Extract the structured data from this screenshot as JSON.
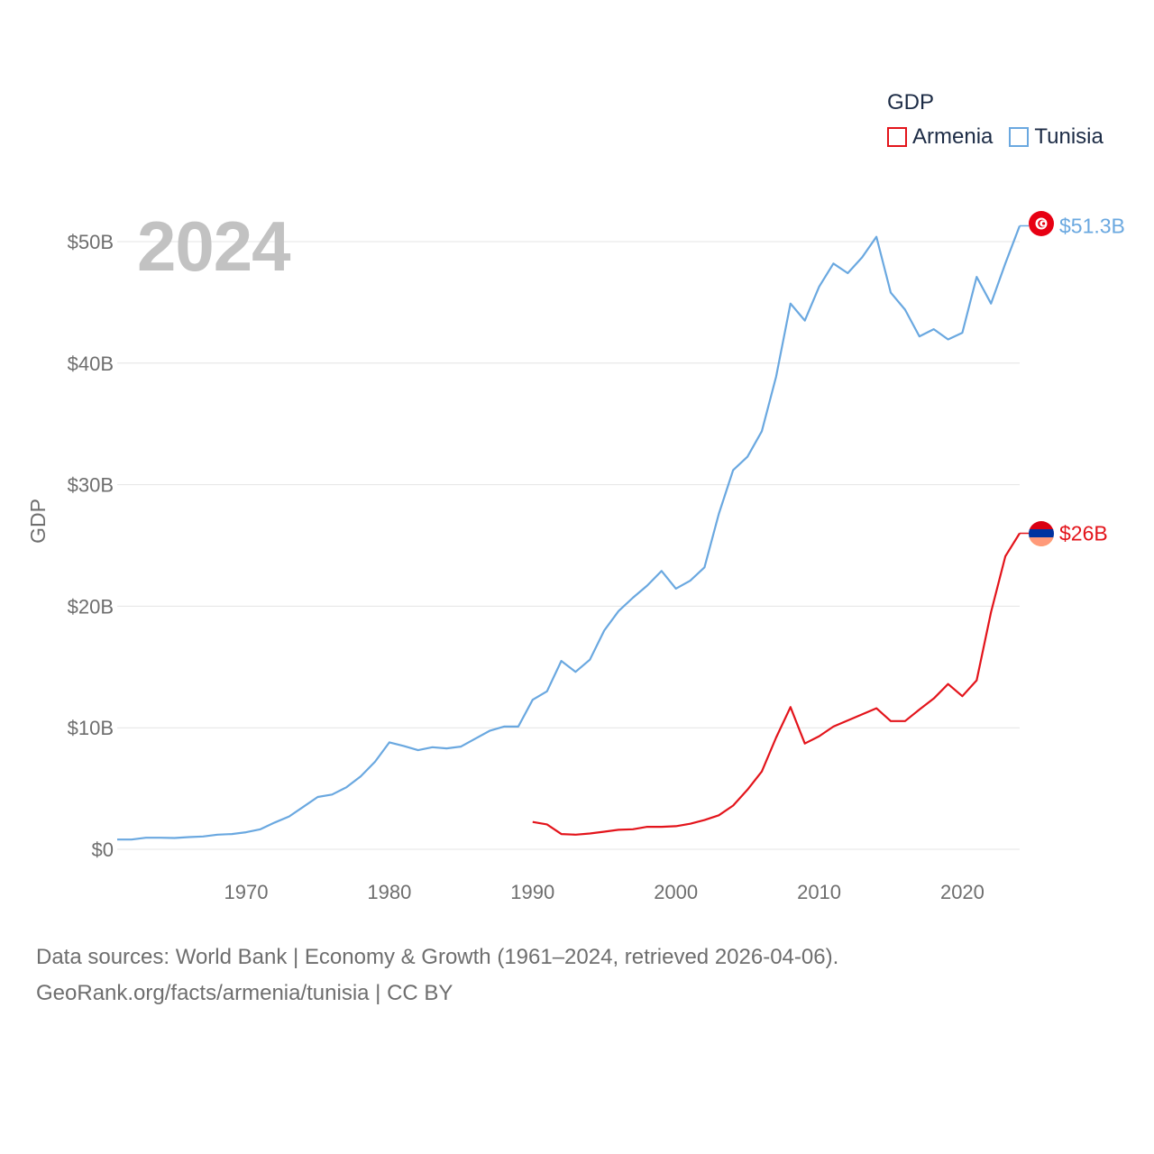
{
  "legend": {
    "title": "GDP",
    "items": [
      {
        "label": "Armenia",
        "color": "#e3141b"
      },
      {
        "label": "Tunisia",
        "color": "#6aa8e0"
      }
    ]
  },
  "year_label": "2024",
  "source": {
    "line1": "Data sources: World Bank | Economy & Growth (1961–2024, retrieved 2026-04-06).",
    "line2": "GeoRank.org/facts/armenia/tunisia | CC BY"
  },
  "chart_data": {
    "type": "line",
    "title": "",
    "xlabel": "",
    "ylabel": "GDP",
    "xlim": [
      1961,
      2024
    ],
    "ylim": [
      0,
      50
    ],
    "x_ticks": [
      1970,
      1980,
      1990,
      2000,
      2010,
      2020
    ],
    "y_ticks": [
      {
        "value": 0,
        "label": "$0"
      },
      {
        "value": 10,
        "label": "$10B"
      },
      {
        "value": 20,
        "label": "$20B"
      },
      {
        "value": 30,
        "label": "$30B"
      },
      {
        "value": 40,
        "label": "$40B"
      },
      {
        "value": 50,
        "label": "$50B"
      }
    ],
    "units": "billions USD",
    "series": [
      {
        "name": "Tunisia",
        "color": "#6aa8e0",
        "end_label": "$51.3B",
        "flag": "tunisia",
        "x": [
          1961,
          1962,
          1963,
          1964,
          1965,
          1966,
          1967,
          1968,
          1969,
          1970,
          1971,
          1972,
          1973,
          1974,
          1975,
          1976,
          1977,
          1978,
          1979,
          1980,
          1981,
          1982,
          1983,
          1984,
          1985,
          1986,
          1987,
          1988,
          1989,
          1990,
          1991,
          1992,
          1993,
          1994,
          1995,
          1996,
          1997,
          1998,
          1999,
          2000,
          2001,
          2002,
          2003,
          2004,
          2005,
          2006,
          2007,
          2008,
          2009,
          2010,
          2011,
          2012,
          2013,
          2014,
          2015,
          2016,
          2017,
          2018,
          2019,
          2020,
          2021,
          2022,
          2023,
          2024
        ],
        "values": [
          0.8,
          0.8,
          0.95,
          0.95,
          0.93,
          1.0,
          1.05,
          1.2,
          1.25,
          1.4,
          1.65,
          2.2,
          2.7,
          3.5,
          4.3,
          4.5,
          5.1,
          6.0,
          7.2,
          8.8,
          8.5,
          8.15,
          8.4,
          8.3,
          8.45,
          9.1,
          9.75,
          10.1,
          10.1,
          12.3,
          13.0,
          15.5,
          14.6,
          15.6,
          18.0,
          19.6,
          20.7,
          21.7,
          22.9,
          21.45,
          22.1,
          23.2,
          27.6,
          31.2,
          32.3,
          34.4,
          38.9,
          44.9,
          43.5,
          46.3,
          48.2,
          47.4,
          48.7,
          50.4,
          45.8,
          44.4,
          42.2,
          42.8,
          41.95,
          42.5,
          47.1,
          44.9,
          48.2,
          51.3
        ]
      },
      {
        "name": "Armenia",
        "color": "#e3141b",
        "end_label": "$26B",
        "flag": "armenia",
        "x": [
          1990,
          1991,
          1992,
          1993,
          1994,
          1995,
          1996,
          1997,
          1998,
          1999,
          2000,
          2001,
          2002,
          2003,
          2004,
          2005,
          2006,
          2007,
          2008,
          2009,
          2010,
          2011,
          2012,
          2013,
          2014,
          2015,
          2016,
          2017,
          2018,
          2019,
          2020,
          2021,
          2022,
          2023,
          2024
        ],
        "values": [
          2.25,
          2.05,
          1.25,
          1.2,
          1.3,
          1.45,
          1.6,
          1.65,
          1.85,
          1.85,
          1.9,
          2.1,
          2.4,
          2.8,
          3.6,
          4.9,
          6.4,
          9.2,
          11.7,
          8.7,
          9.3,
          10.1,
          10.6,
          11.1,
          11.6,
          10.55,
          10.55,
          11.5,
          12.4,
          13.6,
          12.6,
          13.9,
          19.5,
          24.1,
          26.0
        ]
      }
    ]
  }
}
